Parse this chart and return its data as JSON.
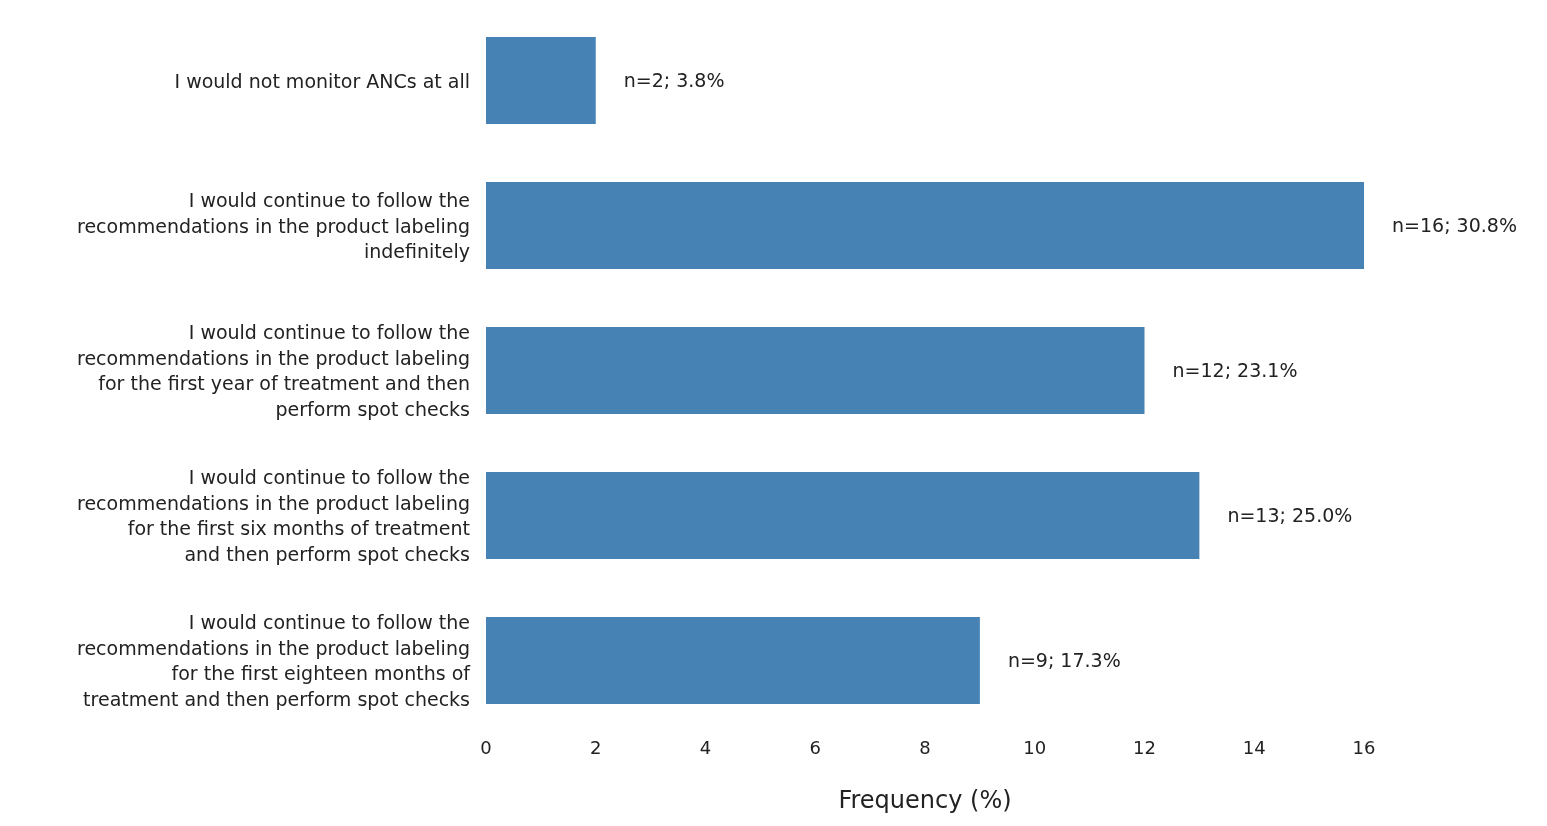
{
  "chart_data": {
    "type": "bar",
    "orientation": "horizontal",
    "xlabel": "Frequency (%)",
    "categories": [
      "I would not monitor ANCs at all",
      "I would continue to follow the recommendations in the product labeling indefinitely",
      "I would continue to follow the recommendations in the product labeling for the first year of treatment and then perform spot checks",
      "I would continue to follow the recommendations in the product labeling for the first six months of treatment and then perform spot checks",
      "I would continue to follow the recommendations in the product labeling for the first eighteen months of treatment and then perform spot checks"
    ],
    "values": [
      2,
      16,
      12,
      13,
      9
    ],
    "value_labels": [
      "n=2; 3.8%",
      "n=16; 30.8%",
      "n=12; 23.1%",
      "n=13; 25.0%",
      "n=9; 17.3%"
    ],
    "color": "#4682b4",
    "xlim": [
      0,
      16
    ],
    "xticks": [
      0,
      2,
      4,
      6,
      8,
      10,
      12,
      14,
      16
    ],
    "grid": false,
    "legend": false
  }
}
